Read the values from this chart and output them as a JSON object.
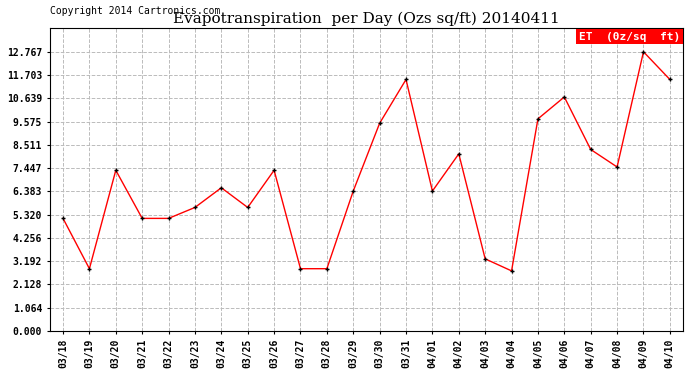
{
  "title": "Evapotranspiration  per Day (Ozs sq/ft) 20140411",
  "copyright": "Copyright 2014 Cartronics.com",
  "legend_label": "ET  (0z/sq  ft)",
  "x_labels": [
    "03/18",
    "03/19",
    "03/20",
    "03/21",
    "03/22",
    "03/23",
    "03/24",
    "03/25",
    "03/26",
    "03/27",
    "03/28",
    "03/29",
    "03/30",
    "03/31",
    "04/01",
    "04/02",
    "04/03",
    "04/04",
    "04/05",
    "04/06",
    "04/07",
    "04/08",
    "04/09",
    "04/10"
  ],
  "y_values": [
    5.15,
    2.85,
    7.35,
    5.15,
    5.15,
    5.65,
    6.55,
    5.65,
    7.35,
    2.85,
    2.85,
    6.4,
    9.5,
    11.5,
    6.4,
    8.1,
    3.3,
    2.75,
    9.7,
    10.7,
    8.3,
    7.5,
    12.767,
    11.5
  ],
  "ylim": [
    0.0,
    13.831
  ],
  "yticks": [
    0.0,
    1.064,
    2.128,
    3.192,
    4.256,
    5.32,
    6.383,
    7.447,
    8.511,
    9.575,
    10.639,
    11.703,
    12.767
  ],
  "line_color": "red",
  "marker_color": "black",
  "marker_size": 3.5,
  "grid_color": "#bbbbbb",
  "background_color": "white",
  "title_fontsize": 11,
  "copyright_fontsize": 7,
  "legend_label_fontsize": 8
}
